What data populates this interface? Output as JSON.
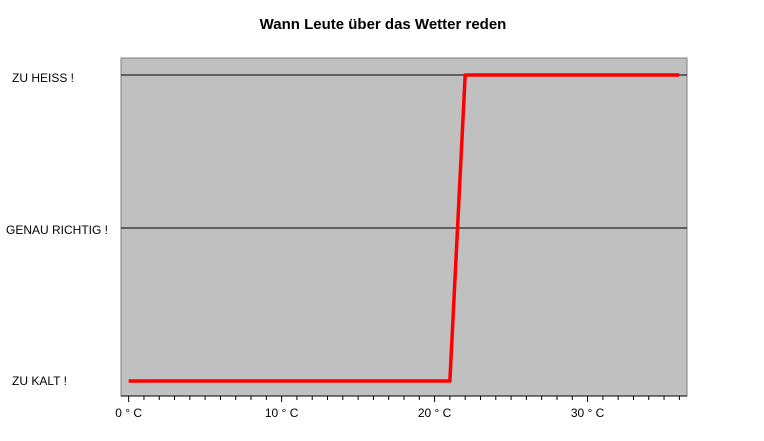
{
  "chart_data": {
    "type": "line",
    "title": "Wann Leute über das Wetter reden",
    "xlabel": "",
    "ylabel": "",
    "x_ticks": [
      {
        "value": 0,
        "label": "0 ° C"
      },
      {
        "value": 10,
        "label": "10 ° C"
      },
      {
        "value": 20,
        "label": "20 ° C"
      },
      {
        "value": 30,
        "label": "30 ° C"
      }
    ],
    "xlim": [
      -0.5,
      36.5
    ],
    "y_categories": [
      "ZU KALT !",
      "GENAU RICHTIG !",
      "ZU HEISS !"
    ],
    "ylim": [
      0,
      2
    ],
    "grid": "horizontal",
    "legend": "none",
    "series": [
      {
        "x": [
          0,
          21,
          22,
          36
        ],
        "y": [
          0,
          0,
          2,
          2
        ],
        "color": "#ff0000"
      }
    ],
    "plot_background": "#c0c0c0"
  }
}
